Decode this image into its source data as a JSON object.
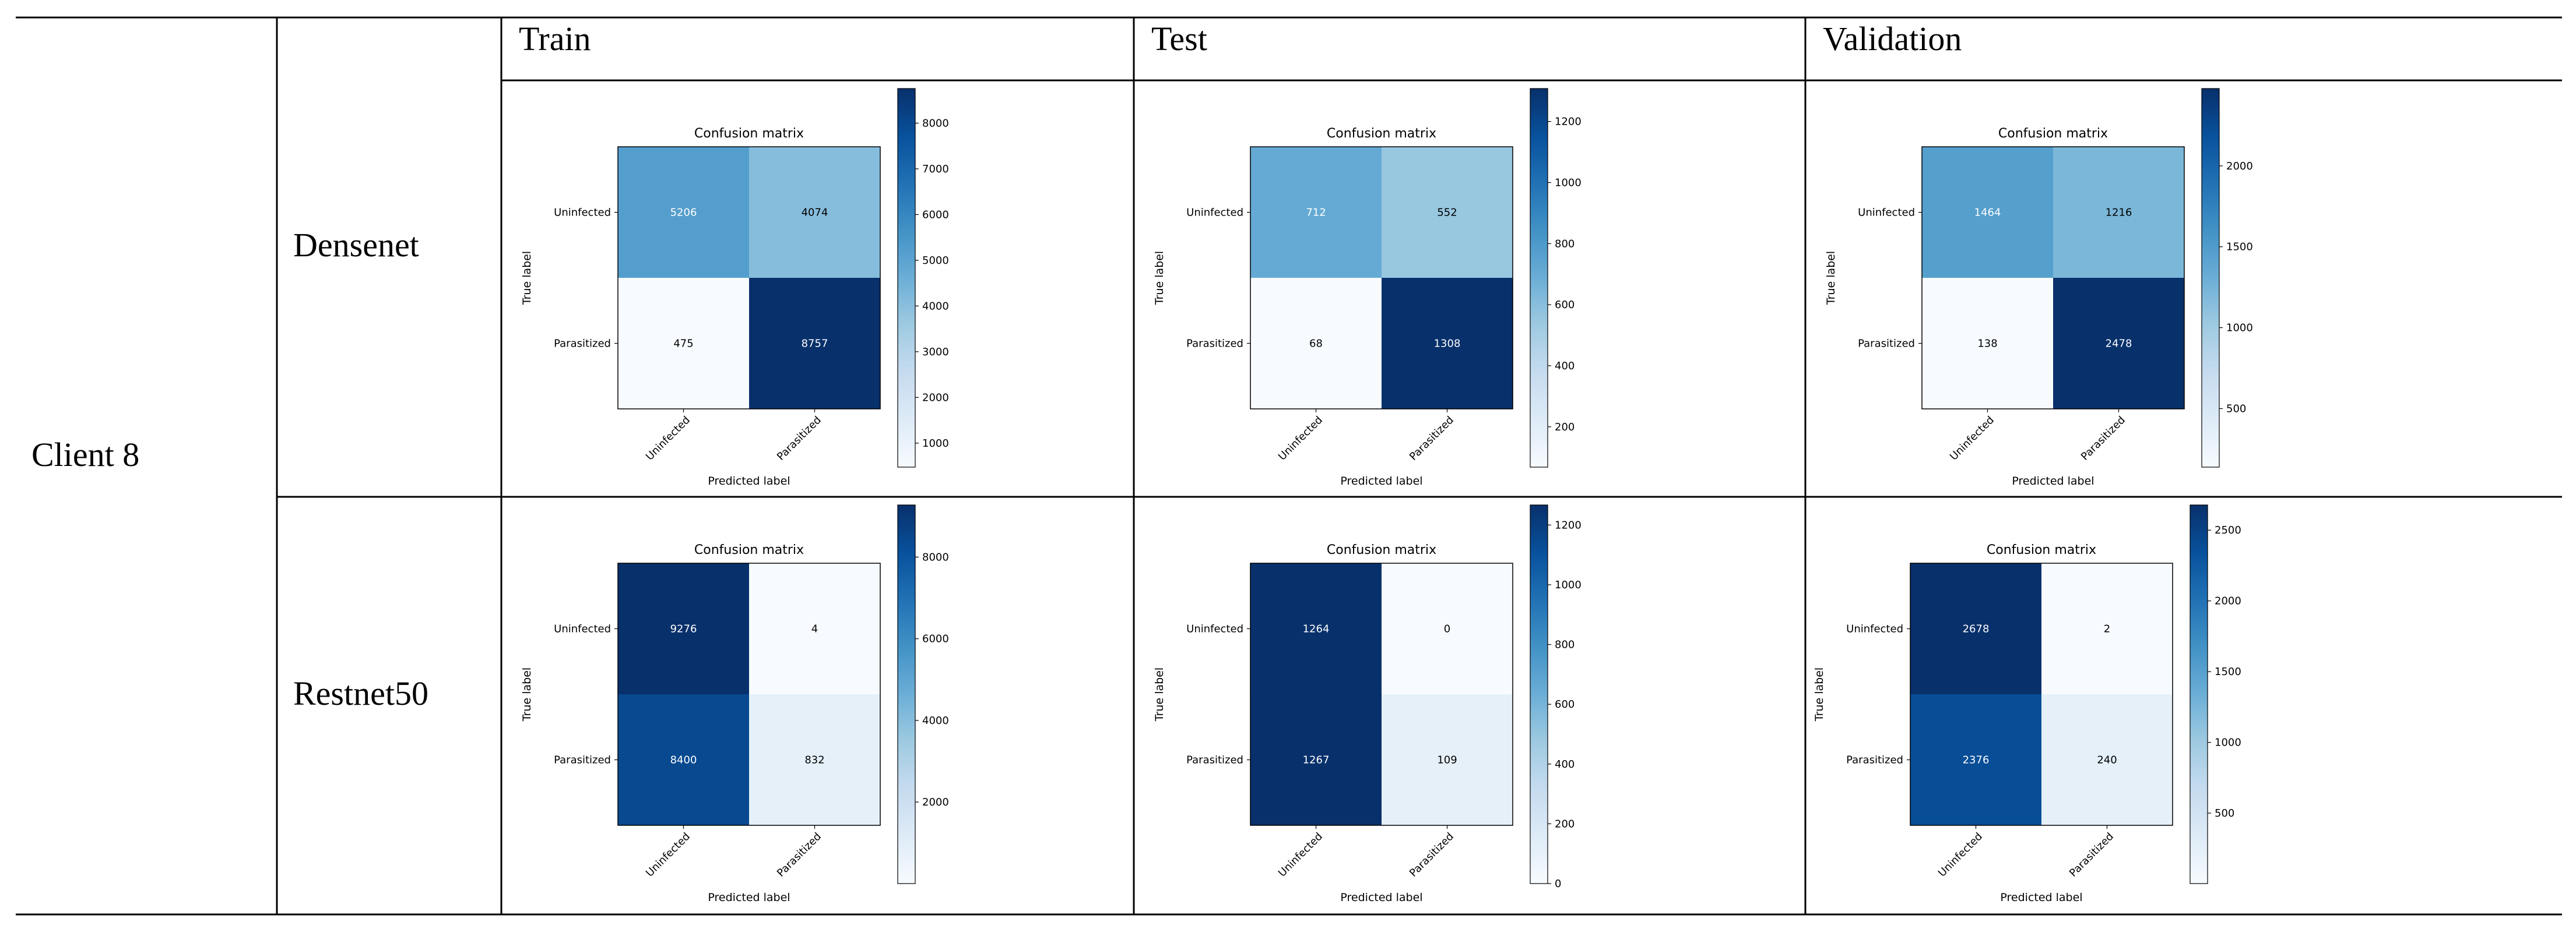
{
  "table": {
    "client_label": "Client 8",
    "column_headers": [
      "Train",
      "Test",
      "Validation"
    ],
    "row_labels": [
      "Densenet",
      "Restnet50"
    ]
  },
  "colors": {
    "cmap_low": "#f7fbff",
    "cmap_high": "#08306b",
    "line": "#000000"
  },
  "chart_data": [
    {
      "type": "heatmap",
      "model": "Densenet",
      "split": "Train",
      "title": "Confusion matrix",
      "xlabel": "Predicted label",
      "ylabel": "True label",
      "x_categories": [
        "Uninfected",
        "Parasitized"
      ],
      "y_categories": [
        "Uninfected",
        "Parasitized"
      ],
      "values": [
        [
          5206,
          4074
        ],
        [
          475,
          8757
        ]
      ],
      "colorbar_ticks": [
        1000,
        2000,
        3000,
        4000,
        5000,
        6000,
        7000,
        8000
      ],
      "colorbar_range": [
        475,
        8757
      ]
    },
    {
      "type": "heatmap",
      "model": "Densenet",
      "split": "Test",
      "title": "Confusion matrix",
      "xlabel": "Predicted label",
      "ylabel": "True label",
      "x_categories": [
        "Uninfected",
        "Parasitized"
      ],
      "y_categories": [
        "Uninfected",
        "Parasitized"
      ],
      "values": [
        [
          712,
          552
        ],
        [
          68,
          1308
        ]
      ],
      "colorbar_ticks": [
        200,
        400,
        600,
        800,
        1000,
        1200
      ],
      "colorbar_range": [
        68,
        1308
      ]
    },
    {
      "type": "heatmap",
      "model": "Densenet",
      "split": "Validation",
      "title": "Confusion matrix",
      "xlabel": "Predicted label",
      "ylabel": "True label",
      "x_categories": [
        "Uninfected",
        "Parasitized"
      ],
      "y_categories": [
        "Uninfected",
        "Parasitized"
      ],
      "values": [
        [
          1464,
          1216
        ],
        [
          138,
          2478
        ]
      ],
      "colorbar_ticks": [
        500,
        1000,
        1500,
        2000
      ],
      "colorbar_range": [
        138,
        2478
      ]
    },
    {
      "type": "heatmap",
      "model": "Restnet50",
      "split": "Train",
      "title": "Confusion matrix",
      "xlabel": "Predicted label",
      "ylabel": "True label",
      "x_categories": [
        "Uninfected",
        "Parasitized"
      ],
      "y_categories": [
        "Uninfected",
        "Parasitized"
      ],
      "values": [
        [
          9276,
          4
        ],
        [
          8400,
          832
        ]
      ],
      "colorbar_ticks": [
        2000,
        4000,
        6000,
        8000
      ],
      "colorbar_range": [
        4,
        9276
      ]
    },
    {
      "type": "heatmap",
      "model": "Restnet50",
      "split": "Test",
      "title": "Confusion matrix",
      "xlabel": "Predicted label",
      "ylabel": "True label",
      "x_categories": [
        "Uninfected",
        "Parasitized"
      ],
      "y_categories": [
        "Uninfected",
        "Parasitized"
      ],
      "values": [
        [
          1264,
          0
        ],
        [
          1267,
          109
        ]
      ],
      "colorbar_ticks": [
        0,
        200,
        400,
        600,
        800,
        1000,
        1200
      ],
      "colorbar_range": [
        0,
        1267
      ]
    },
    {
      "type": "heatmap",
      "model": "Restnet50",
      "split": "Validation",
      "title": "Confusion matrix",
      "xlabel": "Predicted label",
      "ylabel": "True label",
      "x_categories": [
        "Uninfected",
        "Parasitized"
      ],
      "y_categories": [
        "Uninfected",
        "Parasitized"
      ],
      "values": [
        [
          2678,
          2
        ],
        [
          2376,
          240
        ]
      ],
      "colorbar_ticks": [
        500,
        1000,
        1500,
        2000,
        2500
      ],
      "colorbar_range": [
        2,
        2678
      ]
    }
  ]
}
